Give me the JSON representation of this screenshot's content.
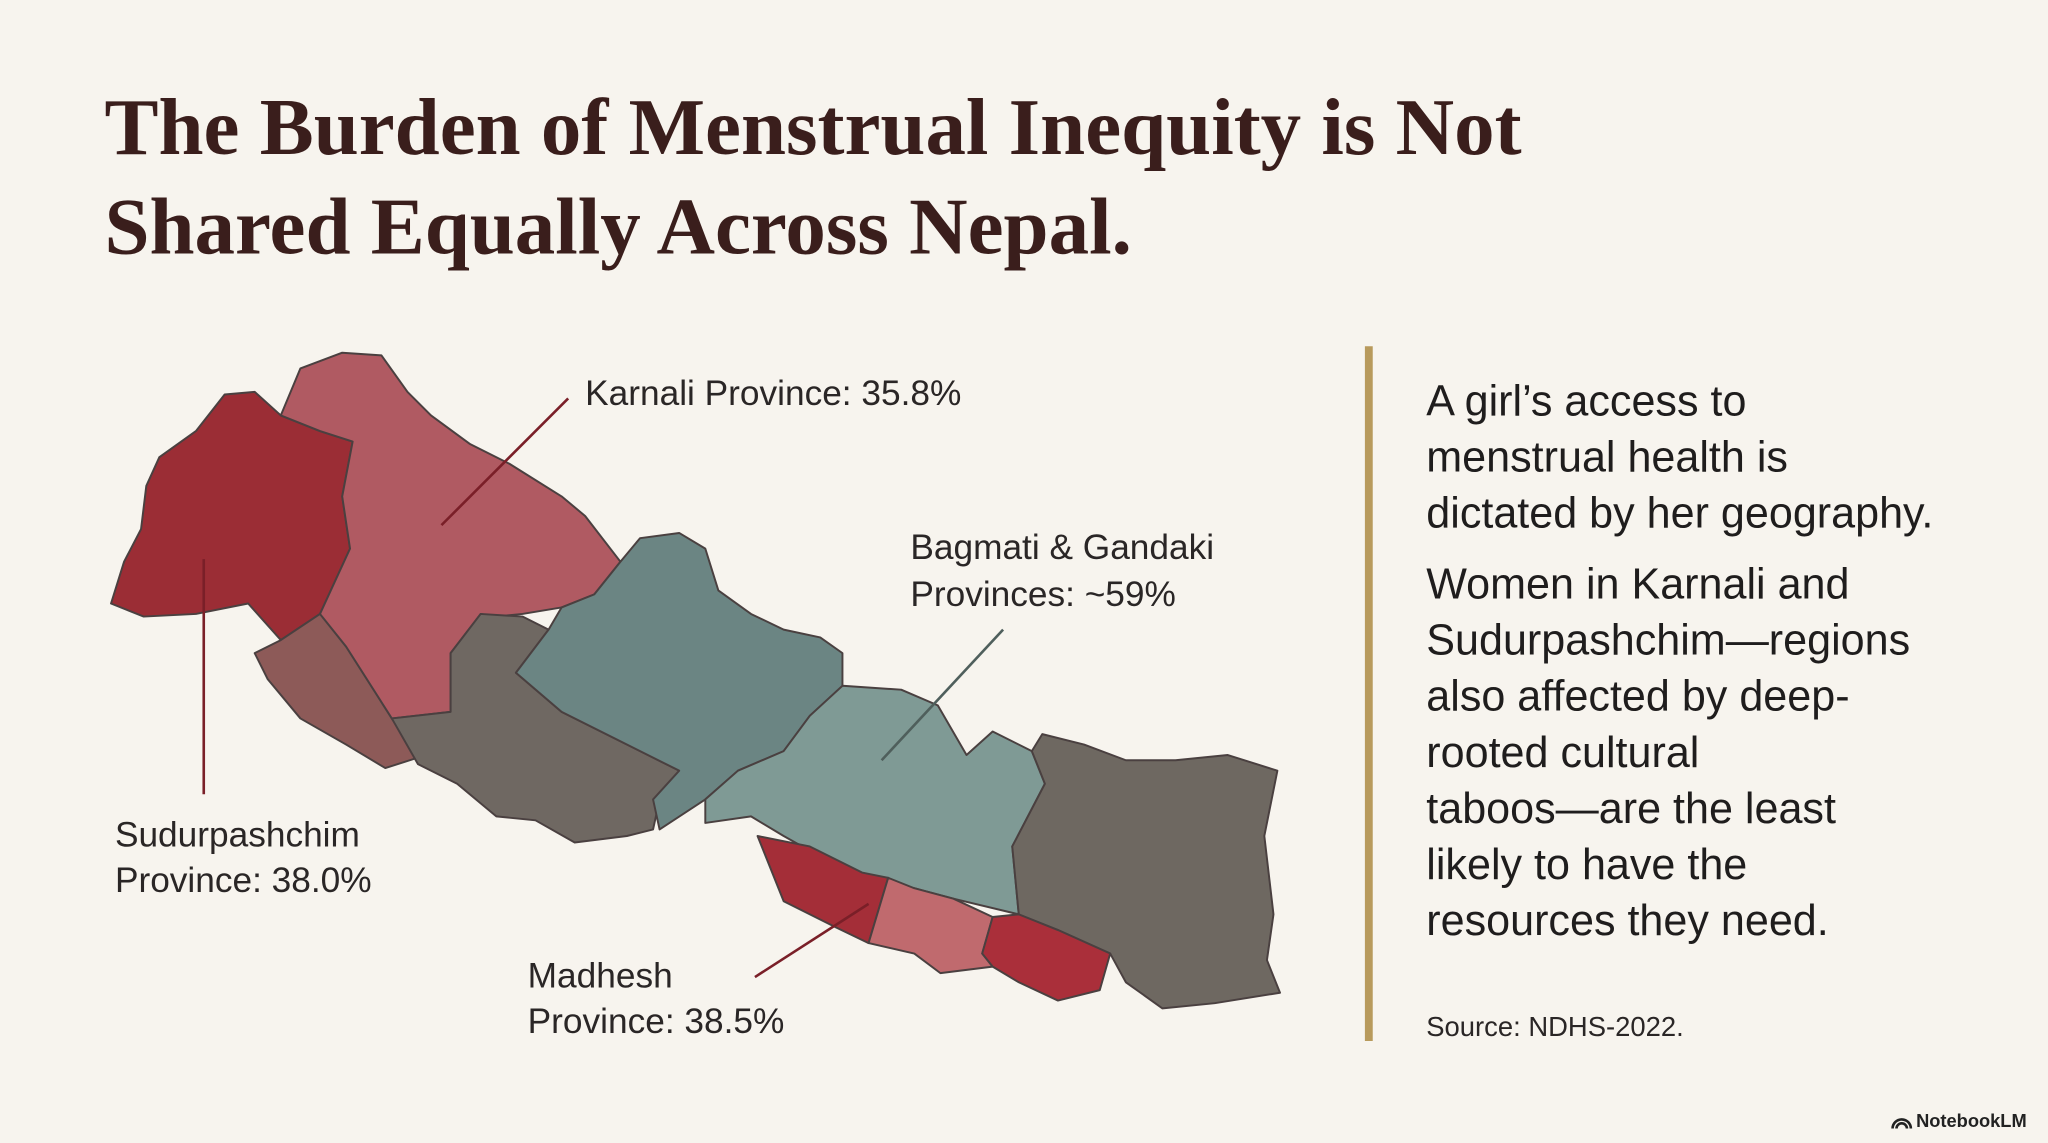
{
  "title": [
    "The Burden of Menstrual Inequity is Not",
    "Shared Equally Across Nepal."
  ],
  "map_labels": {
    "karnali": [
      "Karnali Province: 35.8%"
    ],
    "bagmati_gandaki": [
      "Bagmati & Gandaki",
      "Provinces: ~59%"
    ],
    "sudurpashchim": [
      "Sudurpashchim",
      "Province: 38.0%"
    ],
    "madhesh": [
      "Madhesh",
      "Province: 38.5%"
    ]
  },
  "body": [
    [
      "A girl’s access to",
      "menstrual health is",
      "dictated by her geography."
    ],
    [
      "Women in Karnali and",
      "Sudurpashchim—regions",
      "also affected by deep-",
      "rooted cultural",
      "taboos—are the least",
      "likely to have the",
      "resources they need."
    ]
  ],
  "source": "Source: NDHS-2022.",
  "brand": "NotebookLM"
}
